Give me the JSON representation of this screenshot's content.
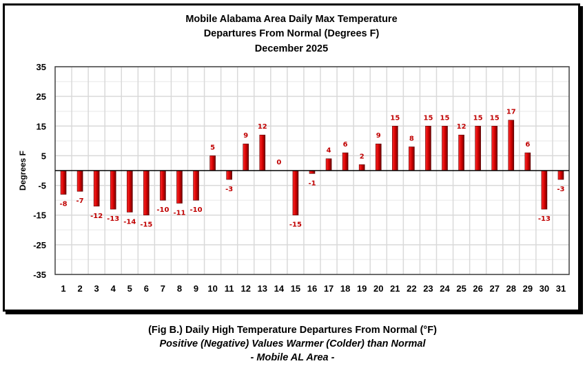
{
  "chart_data": {
    "type": "bar",
    "title": [
      "Mobile Alabama Area Daily Max Temperature",
      "Departures From Normal (Degrees F)",
      "December 2025"
    ],
    "xlabel": "",
    "ylabel": "Degrees F",
    "ylim": [
      -35,
      35
    ],
    "yticks": [
      35,
      25,
      15,
      5,
      -5,
      -15,
      -25,
      -35
    ],
    "minor_gridlines": [
      30,
      20,
      10,
      0,
      -10,
      -20,
      -30
    ],
    "grid": true,
    "legend": "none",
    "categories": [
      "1",
      "2",
      "3",
      "4",
      "5",
      "6",
      "7",
      "8",
      "9",
      "10",
      "11",
      "12",
      "13",
      "14",
      "15",
      "16",
      "17",
      "18",
      "19",
      "20",
      "21",
      "22",
      "23",
      "24",
      "25",
      "26",
      "27",
      "28",
      "29",
      "30",
      "31"
    ],
    "values": [
      -8,
      -7,
      -12,
      -13,
      -14,
      -15,
      -10,
      -11,
      -10,
      5,
      -3,
      9,
      12,
      0,
      -15,
      -1,
      4,
      6,
      2,
      9,
      15,
      8,
      15,
      15,
      12,
      15,
      15,
      17,
      6,
      -13,
      -3
    ],
    "bar_color": "#d00000",
    "bar_shade_color": "#6a0000",
    "label_color": "#c00000"
  },
  "caption": {
    "line1": "(Fig B.) Daily High Temperature Departures From Normal (°F)",
    "line2": "Positive (Negative) Values Warmer (Colder) than Normal",
    "line3": "- Mobile AL Area -"
  }
}
